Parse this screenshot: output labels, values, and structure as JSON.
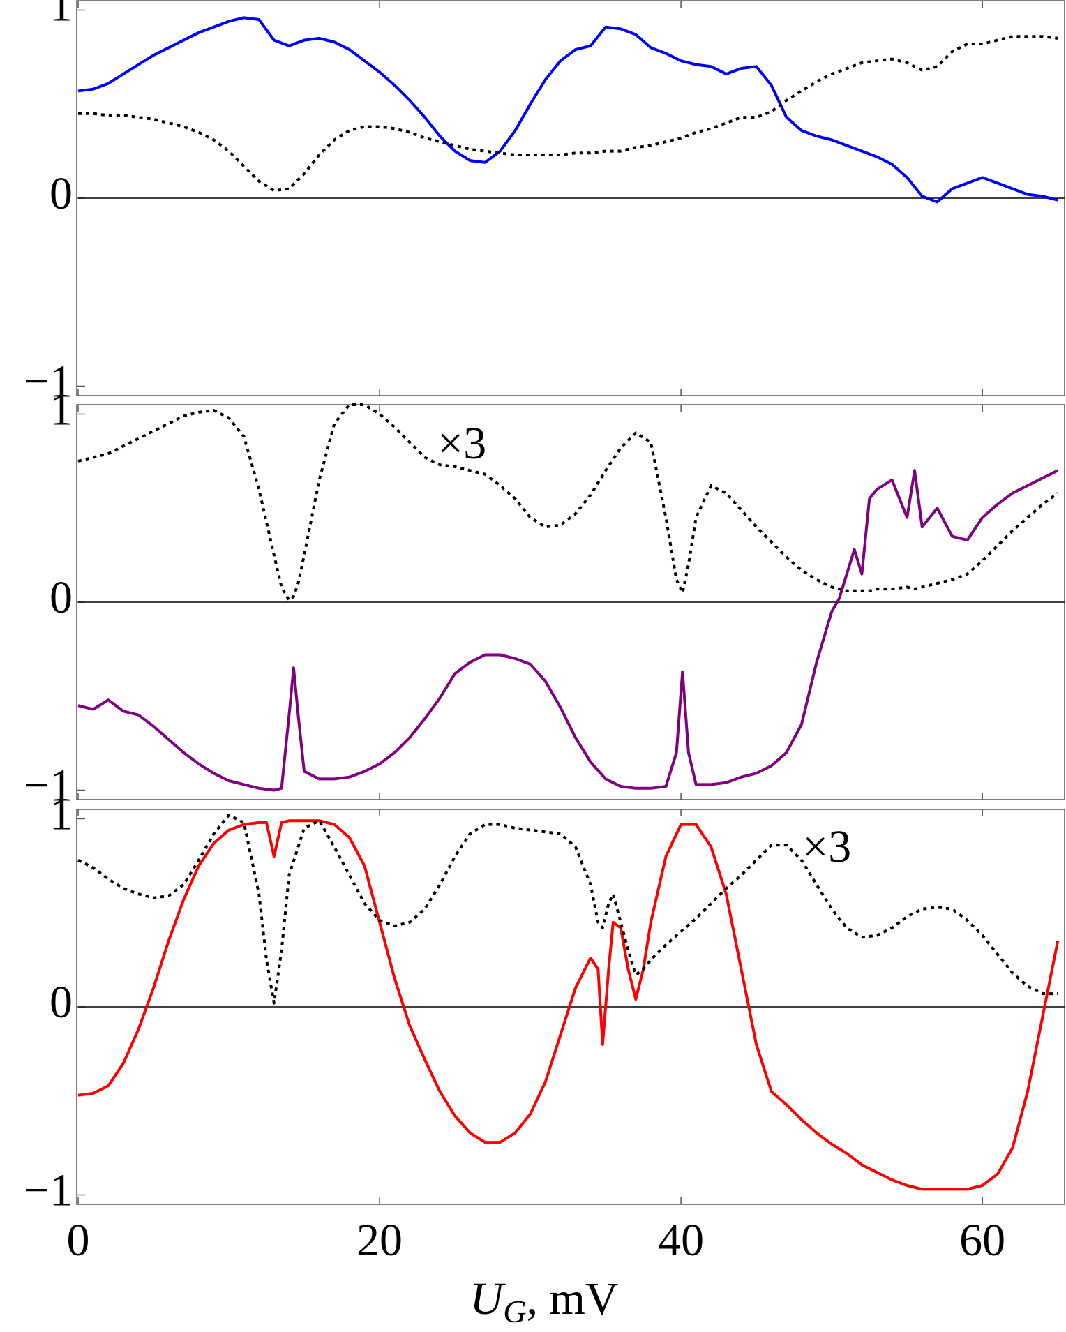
{
  "chart_data": [
    {
      "type": "line",
      "x": [
        0,
        1,
        2,
        3,
        4,
        5,
        6,
        7,
        8,
        9,
        10,
        11,
        12,
        13,
        14,
        15,
        16,
        17,
        18,
        19,
        20,
        21,
        22,
        23,
        24,
        25,
        26,
        27,
        28,
        29,
        30,
        31,
        32,
        33,
        34,
        35,
        36,
        37,
        38,
        39,
        40,
        41,
        42,
        43,
        44,
        45,
        46,
        47,
        48,
        49,
        50,
        51,
        52,
        53,
        54,
        55,
        56,
        57,
        58,
        59,
        60,
        61,
        62,
        63,
        64,
        65
      ],
      "series": [
        {
          "color": "#0000ff",
          "style": "solid",
          "values": [
            0.57,
            0.58,
            0.61,
            0.66,
            0.71,
            0.76,
            0.8,
            0.84,
            0.88,
            0.91,
            0.94,
            0.96,
            0.95,
            0.84,
            0.81,
            0.84,
            0.85,
            0.83,
            0.79,
            0.73,
            0.67,
            0.6,
            0.52,
            0.43,
            0.33,
            0.25,
            0.2,
            0.19,
            0.25,
            0.36,
            0.5,
            0.63,
            0.73,
            0.79,
            0.81,
            0.91,
            0.9,
            0.87,
            0.8,
            0.77,
            0.73,
            0.71,
            0.7,
            0.66,
            0.69,
            0.7,
            0.6,
            0.43,
            0.36,
            0.33,
            0.31,
            0.28,
            0.25,
            0.22,
            0.18,
            0.11,
            0.01,
            -0.02,
            0.05,
            0.08,
            0.11,
            0.08,
            0.05,
            0.02,
            0.01,
            -0.01
          ]
        },
        {
          "color": "#000000",
          "style": "dotted",
          "values": [
            0.45,
            0.45,
            0.44,
            0.44,
            0.43,
            0.42,
            0.4,
            0.38,
            0.35,
            0.31,
            0.25,
            0.17,
            0.09,
            0.04,
            0.05,
            0.13,
            0.23,
            0.31,
            0.36,
            0.38,
            0.38,
            0.37,
            0.35,
            0.32,
            0.3,
            0.28,
            0.26,
            0.25,
            0.24,
            0.23,
            0.23,
            0.23,
            0.23,
            0.24,
            0.24,
            0.25,
            0.25,
            0.27,
            0.28,
            0.3,
            0.32,
            0.35,
            0.37,
            0.4,
            0.43,
            0.43,
            0.46,
            0.52,
            0.57,
            0.62,
            0.66,
            0.69,
            0.72,
            0.73,
            0.74,
            0.72,
            0.68,
            0.7,
            0.78,
            0.82,
            0.82,
            0.84,
            0.86,
            0.86,
            0.86,
            0.85
          ]
        }
      ],
      "xlim": [
        0,
        65.5
      ],
      "xticks": [
        0,
        20,
        40,
        60
      ],
      "xtick_labels": false,
      "ylim": [
        -1.05,
        1.05
      ],
      "yticks": [
        {
          "value": -1,
          "label": "−1"
        },
        0,
        1
      ],
      "zero_line": true
    },
    {
      "type": "line",
      "x": [
        0,
        1,
        2,
        3,
        4,
        5,
        6,
        7,
        8,
        9,
        10,
        11,
        12,
        13,
        13.5,
        14,
        14.3,
        14.6,
        15,
        16,
        17,
        18,
        19,
        20,
        21,
        22,
        23,
        24,
        25,
        26,
        27,
        28,
        29,
        30,
        31,
        32,
        33,
        34,
        35,
        36,
        37,
        38,
        39,
        39.7,
        40.1,
        40.5,
        41,
        42,
        43,
        44,
        45,
        46,
        47,
        48,
        49,
        50,
        50.5,
        51,
        51.5,
        52,
        52.5,
        53,
        54,
        55,
        55.5,
        56,
        57,
        58,
        59,
        60,
        61,
        62,
        63,
        64,
        65
      ],
      "series": [
        {
          "color": "#800080",
          "style": "solid",
          "values": [
            -0.55,
            -0.57,
            -0.52,
            -0.58,
            -0.6,
            -0.66,
            -0.73,
            -0.8,
            -0.86,
            -0.91,
            -0.95,
            -0.97,
            -0.99,
            -1.0,
            -0.99,
            -0.6,
            -0.35,
            -0.6,
            -0.9,
            -0.94,
            -0.94,
            -0.93,
            -0.9,
            -0.86,
            -0.8,
            -0.72,
            -0.62,
            -0.51,
            -0.38,
            -0.32,
            -0.28,
            -0.28,
            -0.3,
            -0.33,
            -0.42,
            -0.56,
            -0.72,
            -0.85,
            -0.94,
            -0.98,
            -0.99,
            -0.99,
            -0.98,
            -0.8,
            -0.37,
            -0.8,
            -0.97,
            -0.97,
            -0.96,
            -0.93,
            -0.91,
            -0.87,
            -0.8,
            -0.65,
            -0.32,
            -0.05,
            0.02,
            0.15,
            0.28,
            0.15,
            0.55,
            0.6,
            0.65,
            0.45,
            0.7,
            0.4,
            0.5,
            0.35,
            0.33,
            0.45,
            0.52,
            0.58,
            0.62,
            0.66,
            0.7
          ]
        },
        {
          "color": "#000000",
          "style": "dotted",
          "values": [
            0.75,
            0.77,
            0.79,
            0.83,
            0.87,
            0.91,
            0.95,
            0.99,
            1.01,
            1.02,
            0.98,
            0.88,
            0.6,
            0.25,
            0.08,
            0.01,
            0.03,
            0.1,
            0.25,
            0.65,
            0.95,
            1.05,
            1.05,
            1.0,
            0.93,
            0.85,
            0.77,
            0.73,
            0.72,
            0.7,
            0.68,
            0.62,
            0.55,
            0.45,
            0.4,
            0.41,
            0.47,
            0.57,
            0.7,
            0.82,
            0.9,
            0.85,
            0.45,
            0.12,
            0.05,
            0.2,
            0.45,
            0.62,
            0.58,
            0.49,
            0.4,
            0.32,
            0.24,
            0.17,
            0.12,
            0.08,
            0.07,
            0.06,
            0.06,
            0.06,
            0.06,
            0.07,
            0.07,
            0.08,
            0.07,
            0.08,
            0.1,
            0.12,
            0.15,
            0.22,
            0.3,
            0.38,
            0.45,
            0.52,
            0.58
          ]
        }
      ],
      "annotation": "×3",
      "xlim": [
        0,
        65.5
      ],
      "xticks": [
        0,
        20,
        40,
        60
      ],
      "xtick_labels": false,
      "ylim": [
        -1.05,
        1.05
      ],
      "yticks": [
        {
          "value": -1,
          "label": "−1"
        },
        0,
        1
      ],
      "zero_line": true
    },
    {
      "type": "line",
      "x": [
        0,
        1,
        2,
        3,
        4,
        5,
        6,
        7,
        8,
        9,
        10,
        11,
        12,
        12.5,
        13,
        13.5,
        14,
        15,
        16,
        17,
        18,
        19,
        20,
        21,
        22,
        23,
        24,
        25,
        26,
        27,
        28,
        29,
        30,
        31,
        32,
        33,
        34,
        34.5,
        34.8,
        35.2,
        35.5,
        36,
        36.5,
        37,
        37.5,
        38,
        39,
        40,
        41,
        42,
        43,
        44,
        45,
        46,
        47,
        48,
        49,
        50,
        51,
        52,
        53,
        54,
        55,
        56,
        57,
        58,
        59,
        60,
        61,
        62,
        63,
        64,
        65
      ],
      "series": [
        {
          "color": "#ff0000",
          "style": "solid",
          "values": [
            -0.47,
            -0.46,
            -0.42,
            -0.3,
            -0.12,
            0.1,
            0.35,
            0.57,
            0.75,
            0.87,
            0.94,
            0.97,
            0.98,
            0.98,
            0.8,
            0.98,
            0.99,
            0.99,
            0.99,
            0.97,
            0.9,
            0.75,
            0.45,
            0.15,
            -0.1,
            -0.28,
            -0.45,
            -0.58,
            -0.67,
            -0.72,
            -0.72,
            -0.67,
            -0.57,
            -0.4,
            -0.15,
            0.1,
            0.26,
            0.2,
            -0.2,
            0.2,
            0.45,
            0.42,
            0.2,
            0.04,
            0.2,
            0.45,
            0.8,
            0.97,
            0.97,
            0.85,
            0.6,
            0.2,
            -0.2,
            -0.45,
            -0.52,
            -0.6,
            -0.67,
            -0.73,
            -0.78,
            -0.84,
            -0.88,
            -0.92,
            -0.95,
            -0.97,
            -0.97,
            -0.97,
            -0.97,
            -0.95,
            -0.89,
            -0.75,
            -0.45,
            -0.05,
            0.35
          ]
        },
        {
          "color": "#000000",
          "style": "dotted",
          "values": [
            0.78,
            0.74,
            0.68,
            0.63,
            0.6,
            0.58,
            0.59,
            0.65,
            0.78,
            0.92,
            1.02,
            0.98,
            0.6,
            0.25,
            0.02,
            0.3,
            0.7,
            0.95,
            0.99,
            0.85,
            0.7,
            0.55,
            0.46,
            0.43,
            0.45,
            0.52,
            0.65,
            0.8,
            0.92,
            0.97,
            0.97,
            0.95,
            0.94,
            0.93,
            0.92,
            0.85,
            0.65,
            0.45,
            0.42,
            0.55,
            0.6,
            0.45,
            0.3,
            0.17,
            0.2,
            0.25,
            0.33,
            0.4,
            0.47,
            0.55,
            0.63,
            0.7,
            0.78,
            0.86,
            0.86,
            0.78,
            0.65,
            0.52,
            0.42,
            0.37,
            0.38,
            0.42,
            0.48,
            0.52,
            0.53,
            0.52,
            0.46,
            0.38,
            0.28,
            0.18,
            0.11,
            0.07,
            0.07
          ]
        }
      ],
      "annotation": "×3",
      "xlabel": {
        "symbol": "U",
        "subscript": "G",
        "rest": ", mV"
      },
      "xlim": [
        0,
        65.5
      ],
      "xticks": [
        0,
        20,
        40,
        60
      ],
      "xtick_labels": true,
      "ylim": [
        -1.05,
        1.05
      ],
      "yticks": [
        {
          "value": -1,
          "label": "−1"
        },
        0,
        1
      ],
      "zero_line": true
    }
  ]
}
